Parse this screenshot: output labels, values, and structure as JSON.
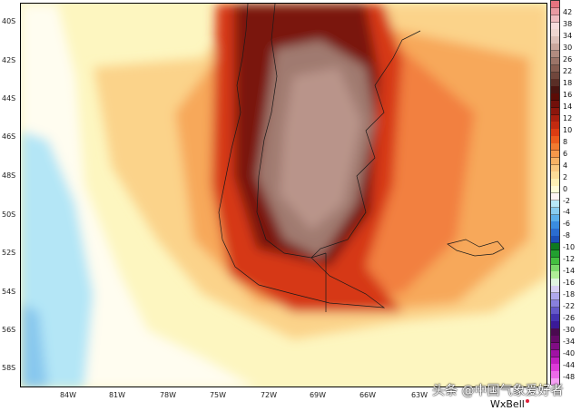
{
  "map": {
    "lat_labels": [
      "40S",
      "42S",
      "44S",
      "46S",
      "48S",
      "50S",
      "52S",
      "54S",
      "56S",
      "58S"
    ],
    "lon_labels": [
      "84W",
      "81W",
      "78W",
      "75W",
      "72W",
      "69W",
      "66W",
      "63W"
    ]
  },
  "colorbar": {
    "labels": [
      "42",
      "38",
      "34",
      "30",
      "26",
      "22",
      "18",
      "16",
      "14",
      "12",
      "10",
      "8",
      "6",
      "4",
      "2",
      "0",
      "-2",
      "-4",
      "-6",
      "-8",
      "-10",
      "-12",
      "-14",
      "-16",
      "-18",
      "-22",
      "-26",
      "-30",
      "-34",
      "-40",
      "-44",
      "-48"
    ],
    "colors": [
      "#e7737f",
      "#e99aa2",
      "#efbcc0",
      "#f5dcdc",
      "#eed6d0",
      "#dcc0b8",
      "#c8a69c",
      "#b28c80",
      "#9c7468",
      "#865c50",
      "#70463c",
      "#5a2e26",
      "#4a1410",
      "#5c0c06",
      "#72100a",
      "#8c160c",
      "#a81e0e",
      "#c22a10",
      "#dc3c12",
      "#ec5a1c",
      "#f27a30",
      "#f6984a",
      "#f8b264",
      "#fac880",
      "#fcdc98",
      "#fef0b4",
      "#fffcd8",
      "#fff4f4",
      "#b8e8f8",
      "#88ccf0",
      "#5aaeea",
      "#3a8ce0",
      "#2a6cd0",
      "#1c50b8",
      "#0e7a20",
      "#22a030",
      "#44c040",
      "#7ad86a",
      "#b0ec98",
      "#e0f4e0",
      "#d8d0f4",
      "#b0a8ec",
      "#8880dc",
      "#6458c8",
      "#4432b0",
      "#3a1a98",
      "#4a0a50",
      "#640a68",
      "#800c84",
      "#a012a4",
      "#c01ec0",
      "#dc3ad8",
      "#ec6ae8",
      "#f6a0f4"
    ]
  },
  "watermark": "头条 @中国气象爱好者",
  "brand": "WxBell"
}
